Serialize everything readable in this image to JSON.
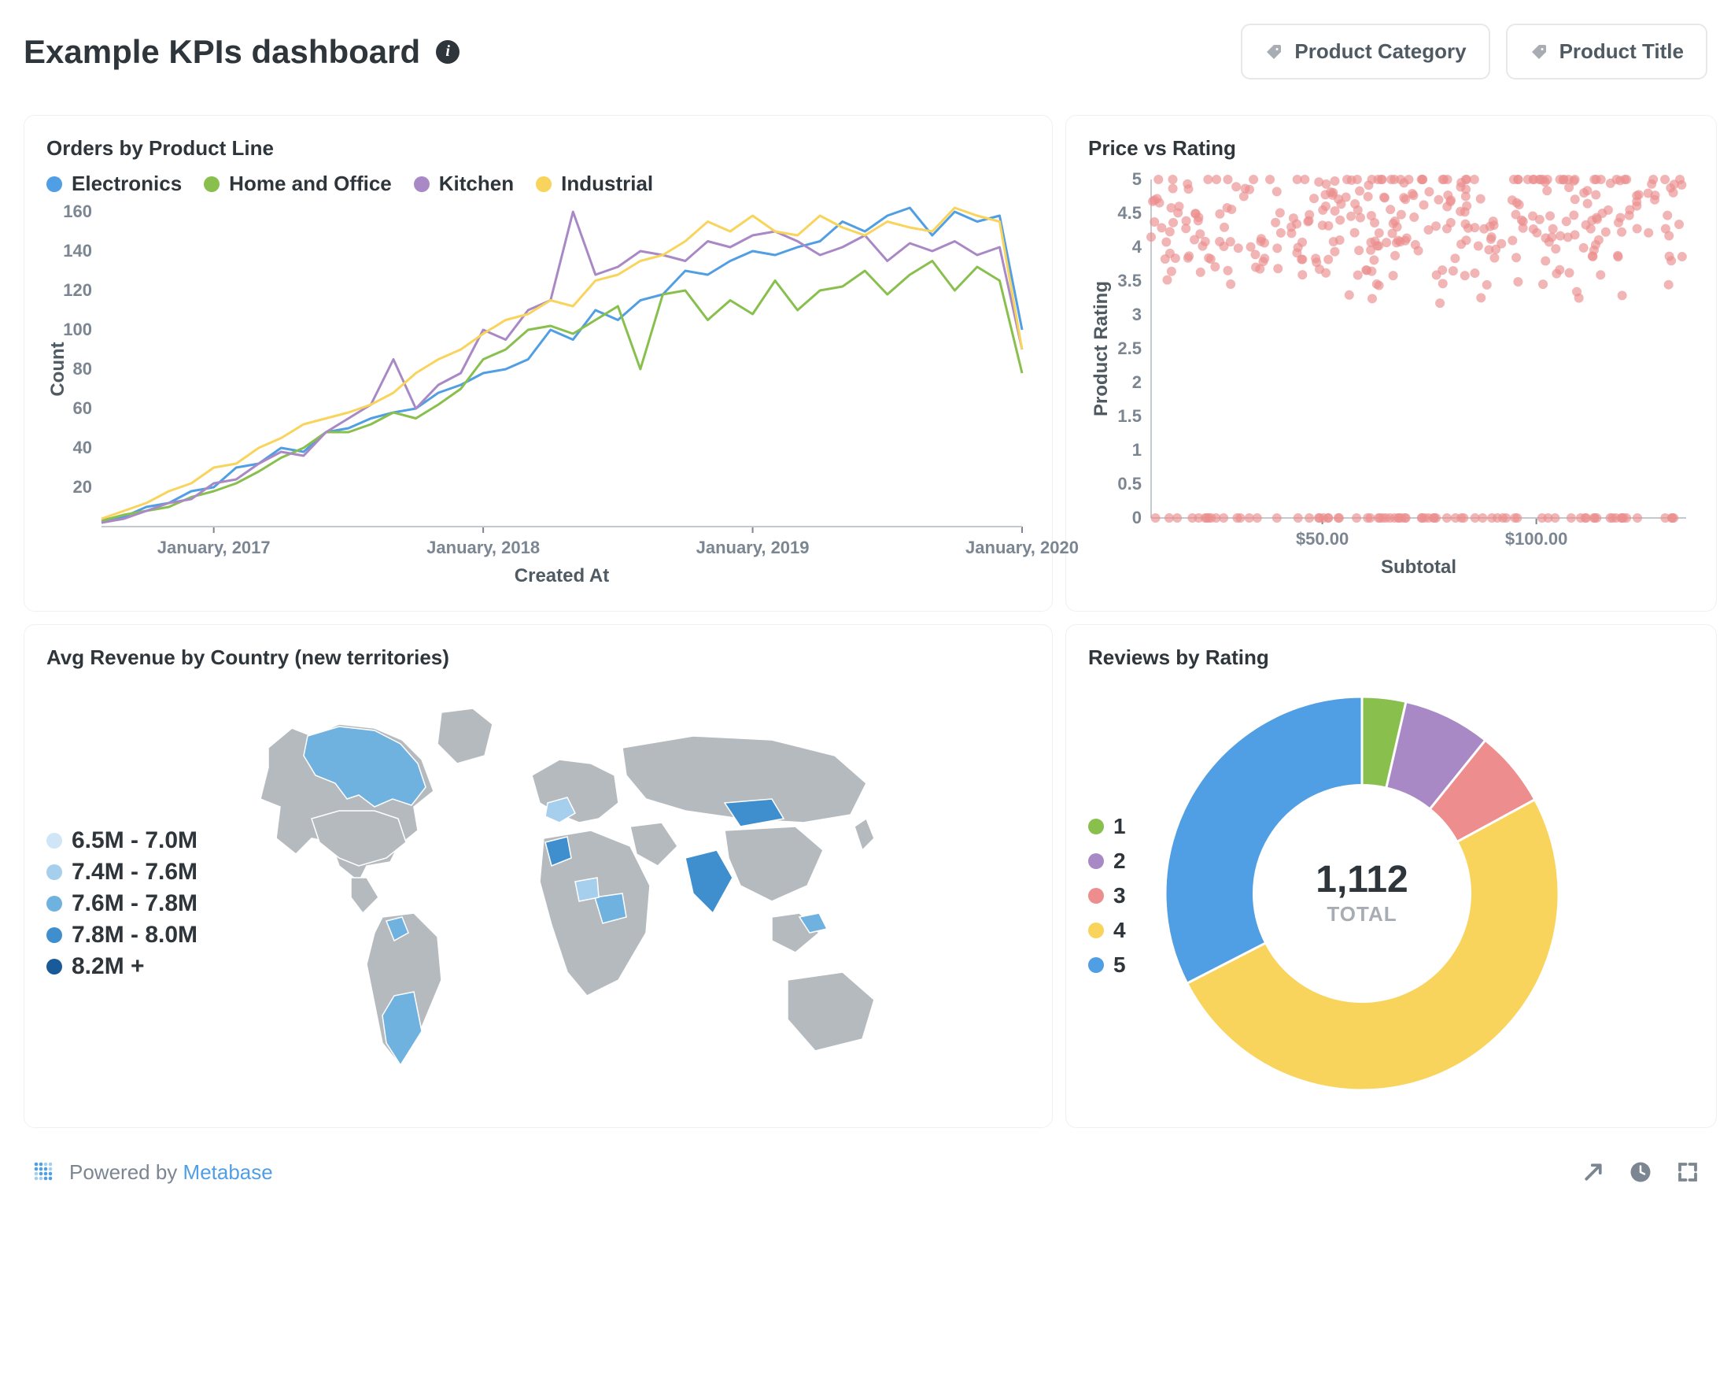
{
  "header": {
    "title": "Example KPIs dashboard",
    "filters": [
      {
        "label": "Product Category"
      },
      {
        "label": "Product Title"
      }
    ]
  },
  "orders_chart": {
    "title": "Orders by Product Line",
    "type": "line",
    "xlabel": "Created At",
    "ylabel": "Count",
    "ylim": [
      0,
      160
    ],
    "ytick_step": 20,
    "xticks": [
      "January, 2017",
      "January, 2018",
      "January, 2019",
      "January, 2020"
    ],
    "grid_color": "#e9ecef",
    "line_width": 3,
    "series": [
      {
        "name": "Electronics",
        "color": "#509ee3",
        "y": [
          2,
          5,
          10,
          12,
          18,
          20,
          30,
          32,
          40,
          38,
          48,
          50,
          55,
          58,
          60,
          68,
          72,
          78,
          80,
          85,
          100,
          95,
          110,
          105,
          115,
          118,
          130,
          128,
          135,
          140,
          138,
          142,
          145,
          155,
          150,
          158,
          162,
          148,
          160,
          155,
          158,
          100
        ]
      },
      {
        "name": "Home and Office",
        "color": "#88bf4d",
        "y": [
          3,
          6,
          8,
          10,
          15,
          18,
          22,
          28,
          35,
          40,
          48,
          48,
          52,
          58,
          55,
          62,
          70,
          85,
          90,
          100,
          102,
          98,
          105,
          112,
          80,
          118,
          120,
          105,
          115,
          108,
          125,
          110,
          120,
          122,
          130,
          118,
          128,
          135,
          120,
          132,
          125,
          78
        ]
      },
      {
        "name": "Kitchen",
        "color": "#a989c5",
        "y": [
          2,
          4,
          8,
          12,
          14,
          22,
          24,
          32,
          38,
          36,
          48,
          55,
          62,
          85,
          60,
          72,
          78,
          100,
          95,
          110,
          115,
          160,
          128,
          132,
          140,
          138,
          135,
          145,
          142,
          148,
          150,
          145,
          138,
          142,
          148,
          135,
          144,
          140,
          145,
          138,
          142,
          90
        ]
      },
      {
        "name": "Industrial",
        "color": "#f9d45c",
        "y": [
          4,
          8,
          12,
          18,
          22,
          30,
          32,
          40,
          45,
          52,
          55,
          58,
          62,
          68,
          78,
          85,
          90,
          98,
          105,
          108,
          115,
          112,
          125,
          128,
          135,
          138,
          145,
          155,
          150,
          158,
          150,
          148,
          158,
          152,
          148,
          155,
          152,
          150,
          162,
          158,
          155,
          90
        ]
      }
    ]
  },
  "scatter_chart": {
    "title": "Price vs Rating",
    "type": "scatter",
    "xlabel": "Subtotal",
    "ylabel": "Product Rating",
    "ylim": [
      0,
      5
    ],
    "ytick_step": 0.5,
    "xticks": [
      {
        "v": 50,
        "label": "$50.00"
      },
      {
        "v": 100,
        "label": "$100.00"
      }
    ],
    "xlim": [
      10,
      135
    ],
    "dot_color": "#eb8d8d",
    "dot_radius": 6
  },
  "map_chart": {
    "title": "Avg Revenue by Country (new territories)",
    "type": "map",
    "buckets": [
      {
        "label": "6.5M - 7.0M",
        "color": "#d0e6f6"
      },
      {
        "label": "7.4M - 7.6M",
        "color": "#a6cfed"
      },
      {
        "label": "7.6M - 7.8M",
        "color": "#6fb2e0"
      },
      {
        "label": "7.8M - 8.0M",
        "color": "#3f8fce"
      },
      {
        "label": "8.2M +",
        "color": "#1a5a99"
      }
    ],
    "base_fill": "#b5babf",
    "border": "#ffffff"
  },
  "donut_chart": {
    "title": "Reviews by Rating",
    "type": "donut",
    "total_number": "1,112",
    "total_label": "TOTAL",
    "inner_radius": 0.55,
    "slices": [
      {
        "label": "1",
        "value": 40,
        "color": "#88bf4d"
      },
      {
        "label": "2",
        "value": 80,
        "color": "#a989c5"
      },
      {
        "label": "3",
        "value": 70,
        "color": "#ee8d8d"
      },
      {
        "label": "4",
        "value": 560,
        "color": "#f9d45c"
      },
      {
        "label": "5",
        "value": 362,
        "color": "#509ee3"
      }
    ]
  },
  "footer": {
    "powered_text": "Powered by ",
    "powered_link": "Metabase"
  }
}
